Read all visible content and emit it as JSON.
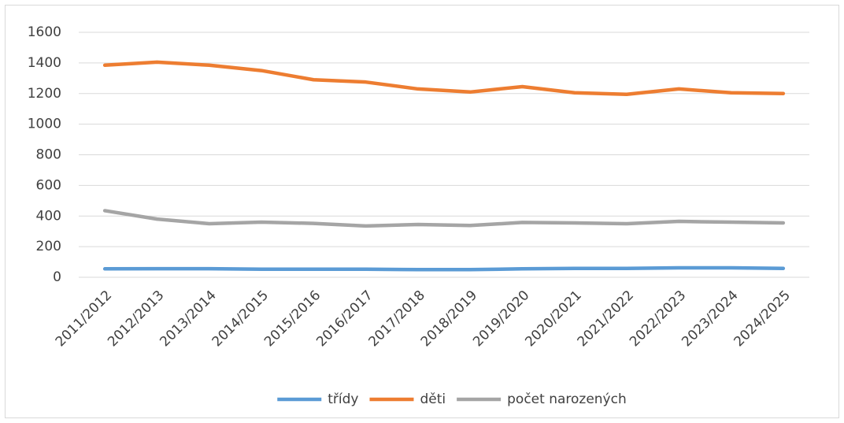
{
  "chart_data": {
    "type": "line",
    "categories": [
      "2011/2012",
      "2012/2013",
      "2013/2014",
      "2014/2015",
      "2015/2016",
      "2016/2017",
      "2017/2018",
      "2018/2019",
      "2019/2020",
      "2020/2021",
      "2021/2022",
      "2022/2023",
      "2023/2024",
      "2024/2025"
    ],
    "series": [
      {
        "name": "třídy",
        "color": "#5b9bd5",
        "values": [
          55,
          56,
          56,
          53,
          53,
          53,
          50,
          50,
          55,
          58,
          58,
          62,
          62,
          58
        ]
      },
      {
        "name": "děti",
        "color": "#ed7d31",
        "values": [
          1385,
          1405,
          1385,
          1350,
          1290,
          1275,
          1230,
          1210,
          1245,
          1205,
          1195,
          1230,
          1205,
          1200
        ]
      },
      {
        "name": "počet narozených",
        "color": "#a5a5a5",
        "values": [
          435,
          380,
          350,
          360,
          352,
          335,
          345,
          338,
          358,
          355,
          350,
          365,
          360,
          355
        ]
      }
    ],
    "ylim": [
      0,
      1600
    ],
    "yticks": [
      0,
      200,
      400,
      600,
      800,
      1000,
      1200,
      1400,
      1600
    ],
    "grid": true,
    "legend": "bottom"
  }
}
